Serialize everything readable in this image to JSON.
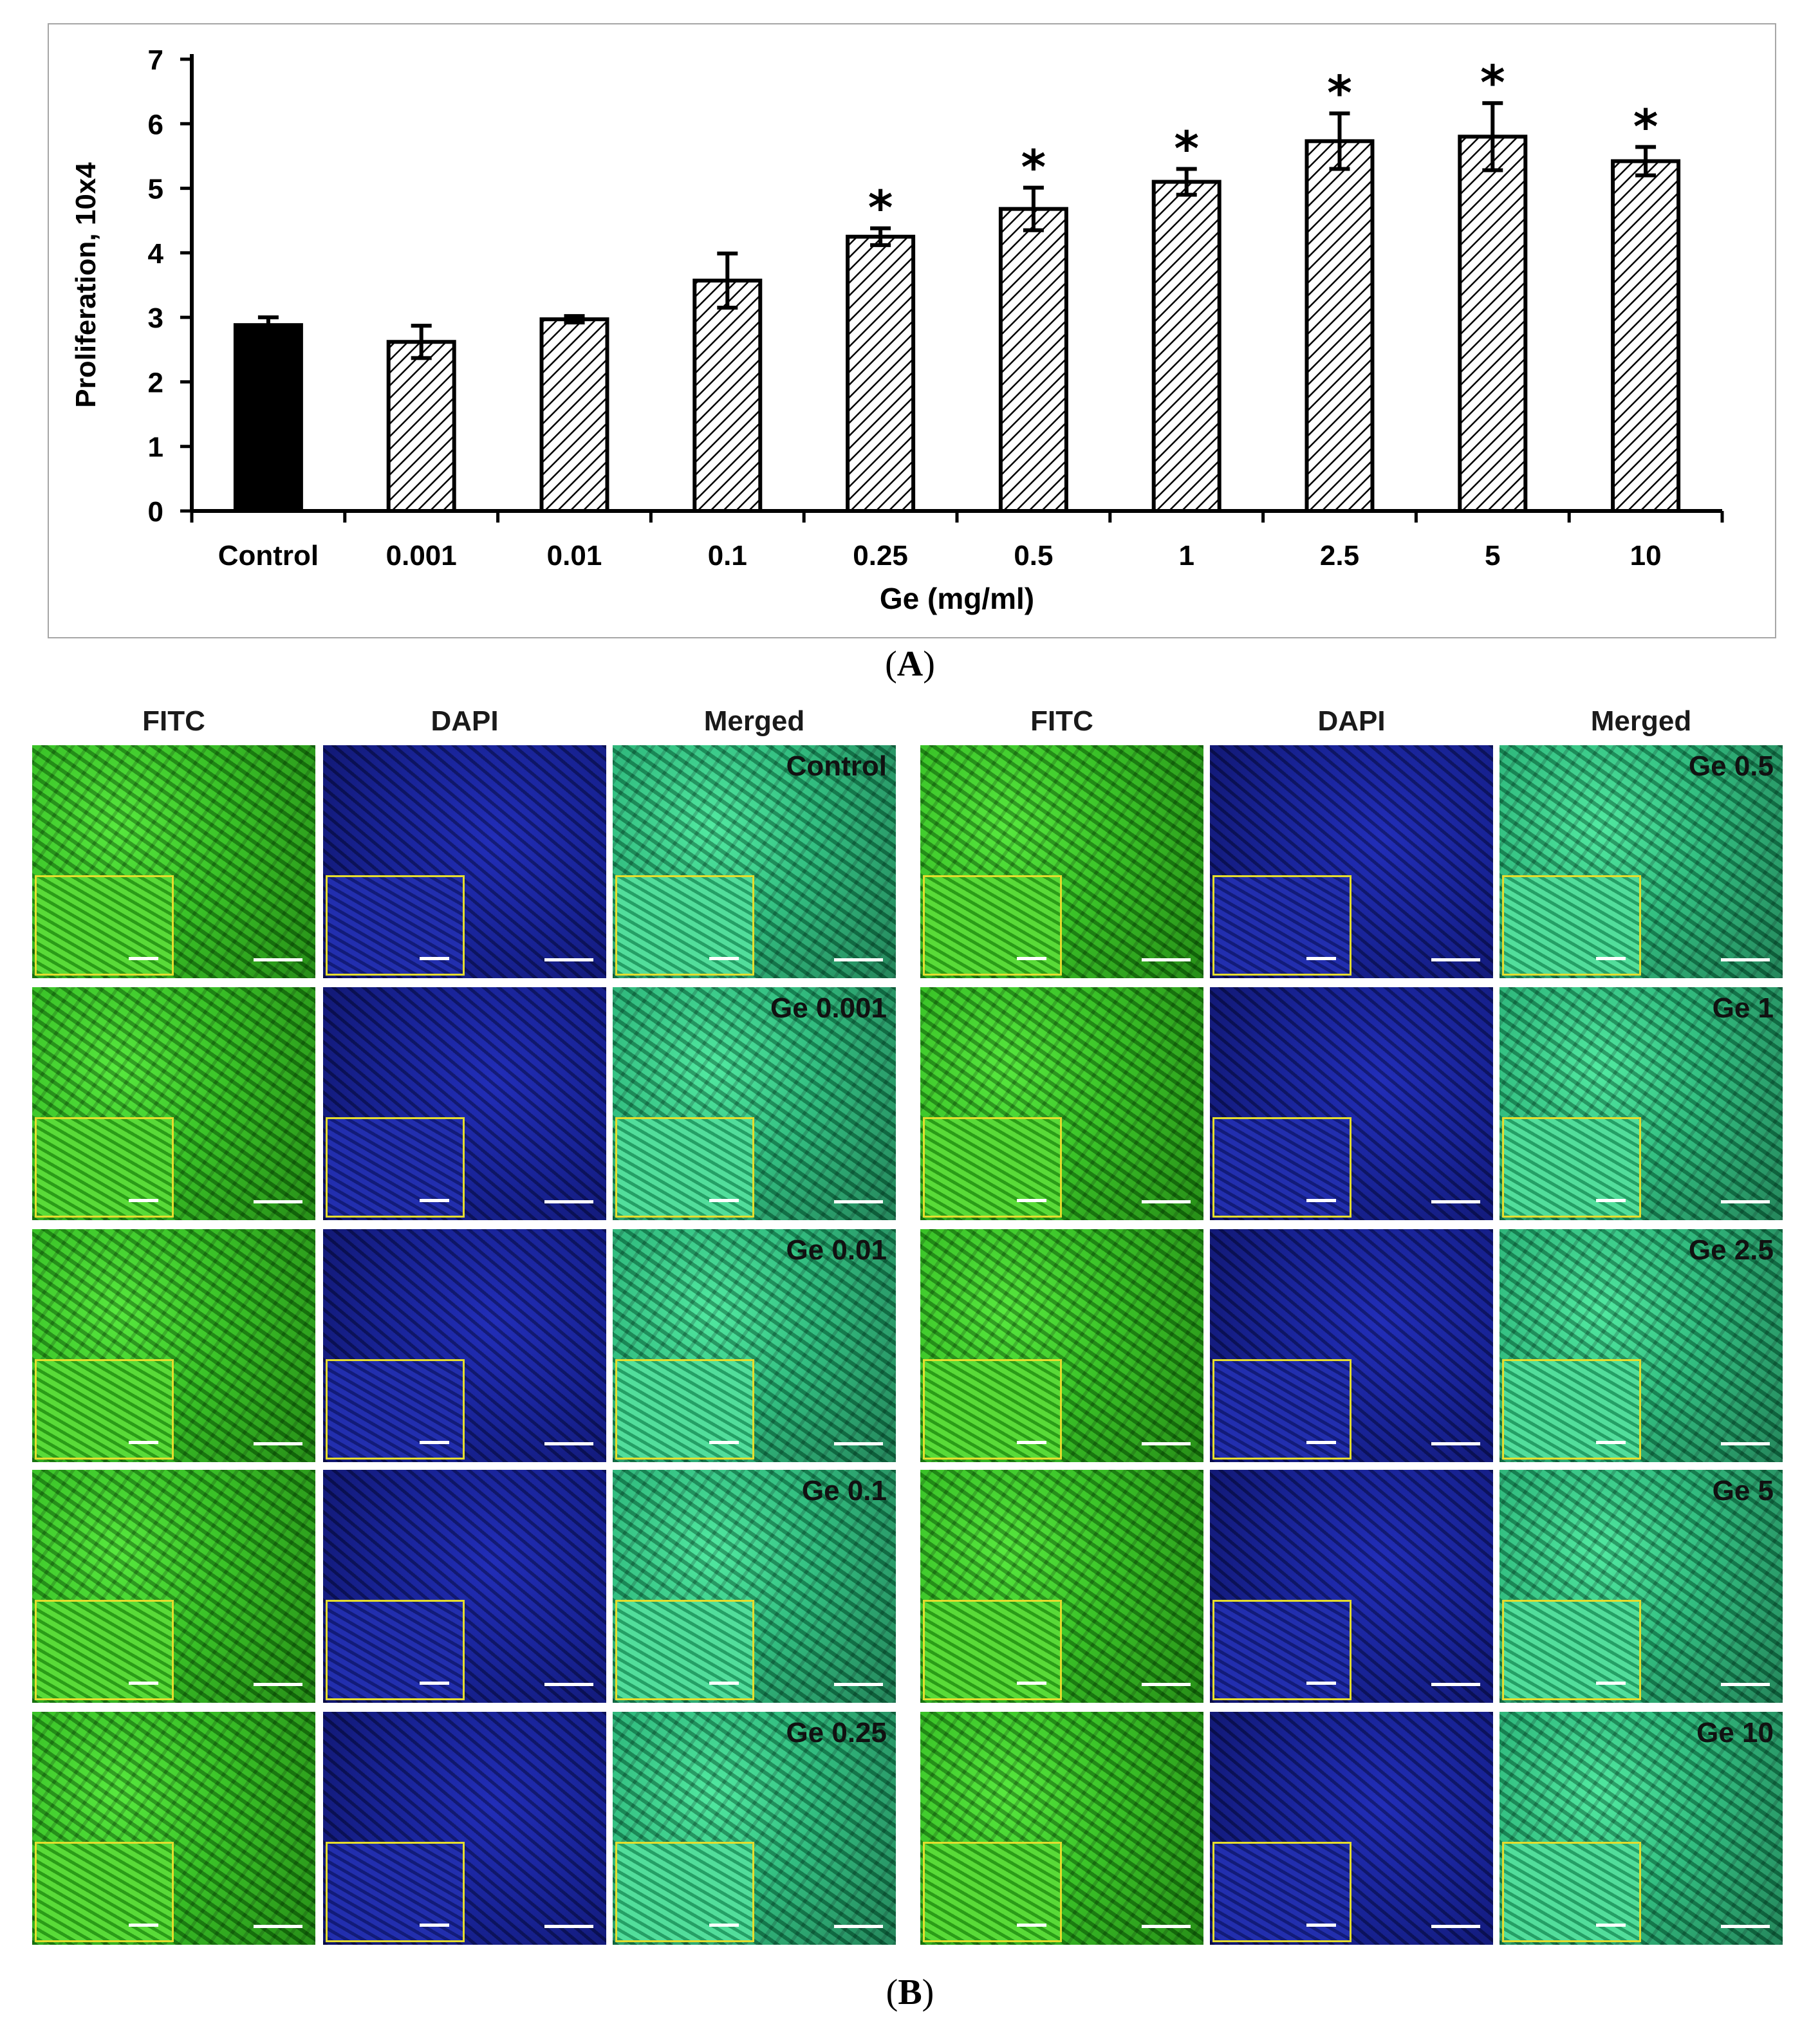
{
  "chart_data": {
    "type": "bar",
    "title": "",
    "xlabel": "Ge (mg/ml)",
    "ylabel": "Proliferation, 10x4",
    "ylim": [
      0,
      7
    ],
    "yticks": [
      "0",
      "1",
      "2",
      "3",
      "4",
      "5",
      "6",
      "7"
    ],
    "categories": [
      "Control",
      "0.001",
      "0.01",
      "0.1",
      "0.25",
      "0.5",
      "1",
      "2.5",
      "5",
      "10"
    ],
    "values": [
      2.88,
      2.62,
      2.97,
      3.57,
      4.25,
      4.68,
      5.1,
      5.73,
      5.8,
      5.42
    ],
    "errors": [
      0.12,
      0.25,
      0.05,
      0.42,
      0.13,
      0.33,
      0.2,
      0.43,
      0.52,
      0.22
    ],
    "significant": [
      false,
      false,
      false,
      false,
      true,
      true,
      true,
      true,
      true,
      true
    ],
    "significance_marker": "*",
    "bar_styles": [
      "solid",
      "hatched",
      "hatched",
      "hatched",
      "hatched",
      "hatched",
      "hatched",
      "hatched",
      "hatched",
      "hatched"
    ],
    "grid": false,
    "legend": "none"
  },
  "colors": {
    "control_bar": "#000000",
    "hatch": "#000000",
    "fitc": "#2fb81f",
    "dapi": "#141f8a",
    "merged": "#23b374",
    "inset_border": "#e5dd2e"
  },
  "panel_labels": {
    "a": "A",
    "b": "B"
  },
  "micrographs": {
    "column_headers": [
      "FITC",
      "DAPI",
      "Merged",
      "FITC",
      "DAPI",
      "Merged"
    ],
    "conditions_left": [
      "Control",
      "Ge 0.001",
      "Ge 0.01",
      "Ge 0.1",
      "Ge 0.25"
    ],
    "conditions_right": [
      "Ge 0.5",
      "Ge 1",
      "Ge 2.5",
      "Ge 5",
      "Ge 10"
    ]
  }
}
